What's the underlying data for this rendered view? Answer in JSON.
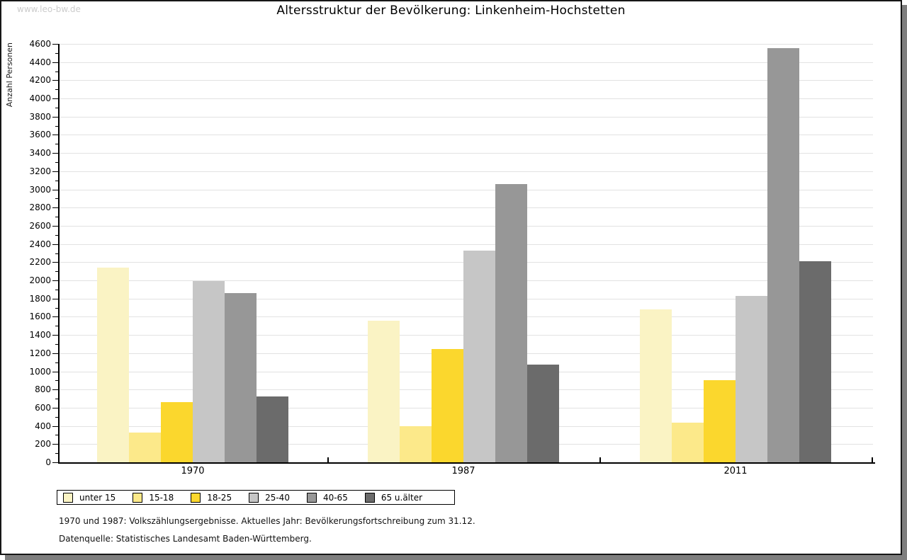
{
  "watermark": "www.leo-bw.de",
  "title": "Altersstruktur der Bevölkerung: Linkenheim-Hochstetten",
  "footer": {
    "line1": "1970 und 1987: Volkszählungsergebnisse. Aktuelles Jahr: Bevölkerungsfortschreibung zum 31.12.",
    "line2": "Datenquelle: Statistisches Landesamt Baden-Württemberg."
  },
  "chart_data": {
    "type": "bar",
    "title": "Altersstruktur der Bevölkerung: Linkenheim-Hochstetten",
    "xlabel": "",
    "ylabel": "Anzahl Personen",
    "categories": [
      "1970",
      "1987",
      "2011"
    ],
    "series": [
      {
        "name": "unter 15",
        "color": "#faf3c4",
        "values": [
          2140,
          1560,
          1680
        ]
      },
      {
        "name": "15-18",
        "color": "#fce98a",
        "values": [
          330,
          400,
          435
        ]
      },
      {
        "name": "18-25",
        "color": "#fbd72d",
        "values": [
          665,
          1245,
          905
        ]
      },
      {
        "name": "25-40",
        "color": "#c6c6c6",
        "values": [
          1990,
          2330,
          1830
        ]
      },
      {
        "name": "40-65",
        "color": "#979797",
        "values": [
          1860,
          3055,
          4550
        ]
      },
      {
        "name": "65 u.älter",
        "color": "#6b6b6b",
        "values": [
          720,
          1075,
          2210
        ]
      }
    ],
    "ylim": [
      0,
      4600
    ],
    "ytick_step": 200,
    "minor_tick_step": 100,
    "grid": true,
    "legend_position": "bottom"
  },
  "style_colors": {
    "grid": "#e2e2e2",
    "axis": "#000000",
    "panel_border": "#161616",
    "shadow": "#7e7e7e",
    "watermark": "#cccccc"
  }
}
